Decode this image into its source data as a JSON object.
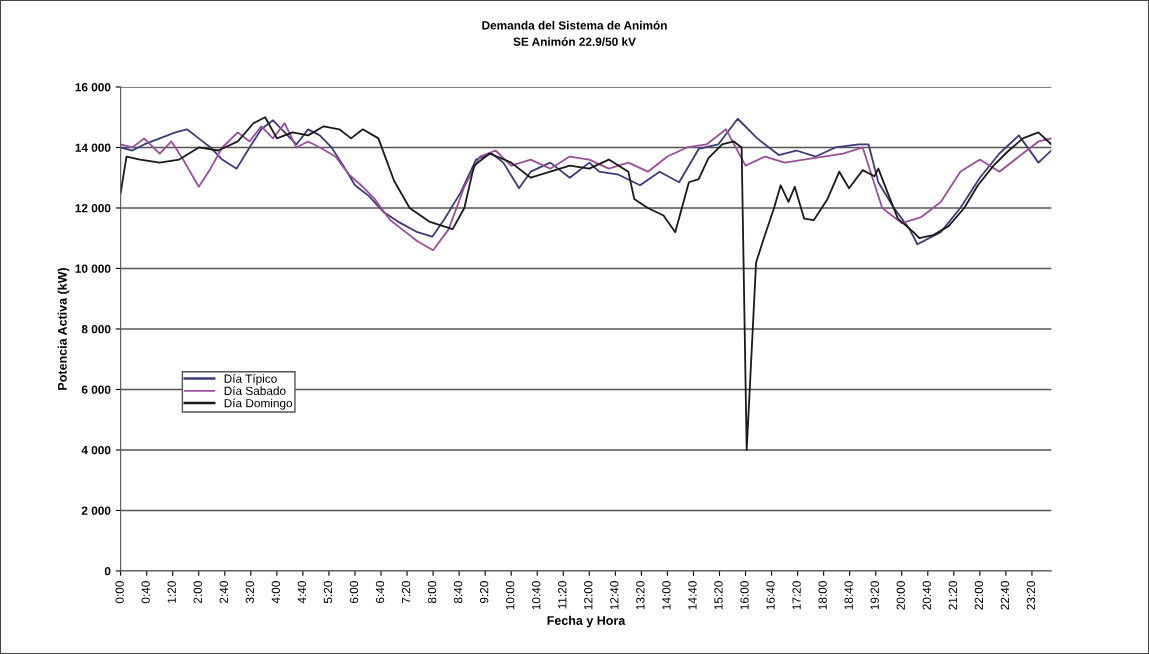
{
  "chart_data": {
    "type": "line",
    "title": "Demanda del Sistema de Animón",
    "subtitle": "SE Animón 22.9/50 kV",
    "xlabel": "Fecha y Hora",
    "ylabel": "Potencia Activa (kW)",
    "xlim": [
      0,
      23.83
    ],
    "ylim": [
      0,
      16000
    ],
    "yticks": [
      {
        "value": 0,
        "label": "0"
      },
      {
        "value": 2000,
        "label": "2 000"
      },
      {
        "value": 4000,
        "label": "4 000"
      },
      {
        "value": 6000,
        "label": "6 000"
      },
      {
        "value": 8000,
        "label": "8 000"
      },
      {
        "value": 10000,
        "label": "10 000"
      },
      {
        "value": 12000,
        "label": "12 000"
      },
      {
        "value": 14000,
        "label": "14 000"
      },
      {
        "value": 16000,
        "label": "16 000"
      }
    ],
    "xticks": [
      {
        "value": 0,
        "label": "0:00"
      },
      {
        "value": 0.6667,
        "label": "0:40"
      },
      {
        "value": 1.3333,
        "label": "1:20"
      },
      {
        "value": 2,
        "label": "2:00"
      },
      {
        "value": 2.6667,
        "label": "2:40"
      },
      {
        "value": 3.3333,
        "label": "3:20"
      },
      {
        "value": 4,
        "label": "4:00"
      },
      {
        "value": 4.6667,
        "label": "4:40"
      },
      {
        "value": 5.3333,
        "label": "5:20"
      },
      {
        "value": 6,
        "label": "6:00"
      },
      {
        "value": 6.6667,
        "label": "6:40"
      },
      {
        "value": 7.3333,
        "label": "7:20"
      },
      {
        "value": 8,
        "label": "8:00"
      },
      {
        "value": 8.6667,
        "label": "8:40"
      },
      {
        "value": 9.3333,
        "label": "9:20"
      },
      {
        "value": 10,
        "label": "10:00"
      },
      {
        "value": 10.6667,
        "label": "10:40"
      },
      {
        "value": 11.3333,
        "label": "11:20"
      },
      {
        "value": 12,
        "label": "12:00"
      },
      {
        "value": 12.6667,
        "label": "12:40"
      },
      {
        "value": 13.3333,
        "label": "13:20"
      },
      {
        "value": 14,
        "label": "14:00"
      },
      {
        "value": 14.6667,
        "label": "14:40"
      },
      {
        "value": 15.3333,
        "label": "15:20"
      },
      {
        "value": 16,
        "label": "16:00"
      },
      {
        "value": 16.6667,
        "label": "16:40"
      },
      {
        "value": 17.3333,
        "label": "17:20"
      },
      {
        "value": 18,
        "label": "18:00"
      },
      {
        "value": 18.6667,
        "label": "18:40"
      },
      {
        "value": 19.3333,
        "label": "19:20"
      },
      {
        "value": 20,
        "label": "20:00"
      },
      {
        "value": 20.6667,
        "label": "20:40"
      },
      {
        "value": 21.3333,
        "label": "21:20"
      },
      {
        "value": 22,
        "label": "22:00"
      },
      {
        "value": 22.6667,
        "label": "22:40"
      },
      {
        "value": 23.3333,
        "label": "23:20"
      }
    ],
    "grid": "y",
    "legend": "left",
    "marker": "none",
    "line_style": "solid",
    "series": [
      {
        "name": "Día Típico",
        "color": "#3c3c78",
        "x": [
          0,
          0.3,
          0.6,
          1.0,
          1.4,
          1.7,
          2.0,
          2.3,
          2.6,
          2.97,
          3.3,
          3.6,
          3.9,
          4.2,
          4.5,
          4.8,
          5.1,
          5.4,
          5.7,
          6.0,
          6.35,
          6.75,
          7.1,
          7.6,
          7.98,
          8.3,
          8.7,
          9.1,
          9.5,
          9.8,
          10.2,
          10.5,
          11.0,
          11.5,
          12.0,
          12.25,
          12.75,
          13.3,
          13.8,
          14.3,
          14.8,
          15.3,
          15.8,
          16.3,
          16.85,
          17.3,
          17.8,
          18.3,
          18.9,
          19.15,
          19.4,
          19.8,
          20.2,
          20.4,
          21.0,
          21.5,
          22.0,
          22.5,
          23.0,
          23.5,
          23.83
        ],
        "values": [
          14000,
          13900,
          14100,
          14300,
          14500,
          14600,
          14300,
          14000,
          13600,
          13300,
          14000,
          14600,
          14900,
          14500,
          14100,
          14600,
          14400,
          14000,
          13400,
          12750,
          12400,
          11850,
          11550,
          11200,
          11050,
          11650,
          12500,
          13600,
          13800,
          13500,
          12650,
          13200,
          13500,
          13000,
          13500,
          13200,
          13100,
          12750,
          13200,
          12850,
          13950,
          14100,
          14950,
          14300,
          13750,
          13900,
          13700,
          14000,
          14100,
          14100,
          12850,
          12000,
          11300,
          10800,
          11200,
          12000,
          13000,
          13800,
          14400,
          13500,
          13900
        ]
      },
      {
        "name": "Día Sabado",
        "color": "#9b4f9b",
        "x": [
          0,
          0.3,
          0.6,
          1.0,
          1.3,
          1.6,
          2.0,
          2.3,
          2.6,
          3.0,
          3.3,
          3.6,
          3.9,
          4.2,
          4.5,
          4.8,
          5.1,
          5.5,
          5.85,
          6.2,
          6.5,
          6.9,
          7.2,
          7.6,
          8.0,
          8.4,
          8.8,
          9.2,
          9.6,
          10.0,
          10.5,
          11.0,
          11.5,
          12.0,
          12.5,
          13.0,
          13.5,
          14.0,
          14.5,
          15.0,
          15.5,
          16.0,
          16.5,
          17.0,
          17.5,
          18.0,
          18.5,
          19.0,
          19.5,
          20.0,
          20.5,
          21.0,
          21.5,
          22.0,
          22.5,
          23.0,
          23.5,
          23.83
        ],
        "values": [
          14100,
          14000,
          14300,
          13800,
          14200,
          13600,
          12700,
          13300,
          14000,
          14500,
          14200,
          14700,
          14300,
          14800,
          14000,
          14200,
          14000,
          13700,
          13100,
          12700,
          12300,
          11600,
          11300,
          10900,
          10600,
          11300,
          12700,
          13700,
          13900,
          13400,
          13600,
          13300,
          13700,
          13600,
          13300,
          13500,
          13200,
          13700,
          14000,
          14100,
          14600,
          13400,
          13700,
          13500,
          13600,
          13700,
          13800,
          14000,
          12000,
          11500,
          11700,
          12200,
          13200,
          13600,
          13200,
          13700,
          14200,
          14300
        ]
      },
      {
        "name": "Día Domingo",
        "color": "#1a1a1a",
        "x": [
          0,
          0.15,
          0.5,
          1.0,
          1.5,
          2.0,
          2.5,
          3.0,
          3.4,
          3.7,
          4.0,
          4.4,
          4.8,
          5.2,
          5.6,
          5.9,
          6.2,
          6.6,
          7.0,
          7.4,
          7.9,
          8.5,
          8.8,
          9.05,
          9.45,
          10.0,
          10.5,
          11.0,
          11.5,
          12.0,
          12.5,
          13.0,
          13.15,
          13.5,
          13.9,
          14.2,
          14.55,
          14.8,
          15.05,
          15.4,
          15.7,
          15.9,
          16.03,
          16.27,
          16.47,
          16.73,
          16.9,
          17.1,
          17.26,
          17.5,
          17.75,
          18.1,
          18.4,
          18.65,
          19.0,
          19.3,
          19.4,
          19.7,
          19.9,
          20.3,
          20.45,
          20.8,
          21.2,
          21.6,
          21.95,
          22.35,
          22.7,
          23.1,
          23.5,
          23.83
        ],
        "values": [
          12500,
          13700,
          13600,
          13500,
          13600,
          14000,
          13900,
          14200,
          14800,
          15000,
          14300,
          14500,
          14400,
          14700,
          14600,
          14300,
          14600,
          14300,
          12900,
          12000,
          11550,
          11300,
          12000,
          13400,
          13800,
          13500,
          13000,
          13200,
          13400,
          13300,
          13600,
          13200,
          12300,
          12000,
          11750,
          11200,
          12850,
          12950,
          13650,
          14100,
          14200,
          14000,
          4000,
          10200,
          11000,
          12000,
          12750,
          12200,
          12700,
          11650,
          11600,
          12300,
          13200,
          12650,
          13250,
          13050,
          13300,
          12300,
          11650,
          11200,
          11000,
          11100,
          11400,
          12000,
          12750,
          13400,
          13850,
          14300,
          14500,
          14100
        ]
      }
    ]
  }
}
